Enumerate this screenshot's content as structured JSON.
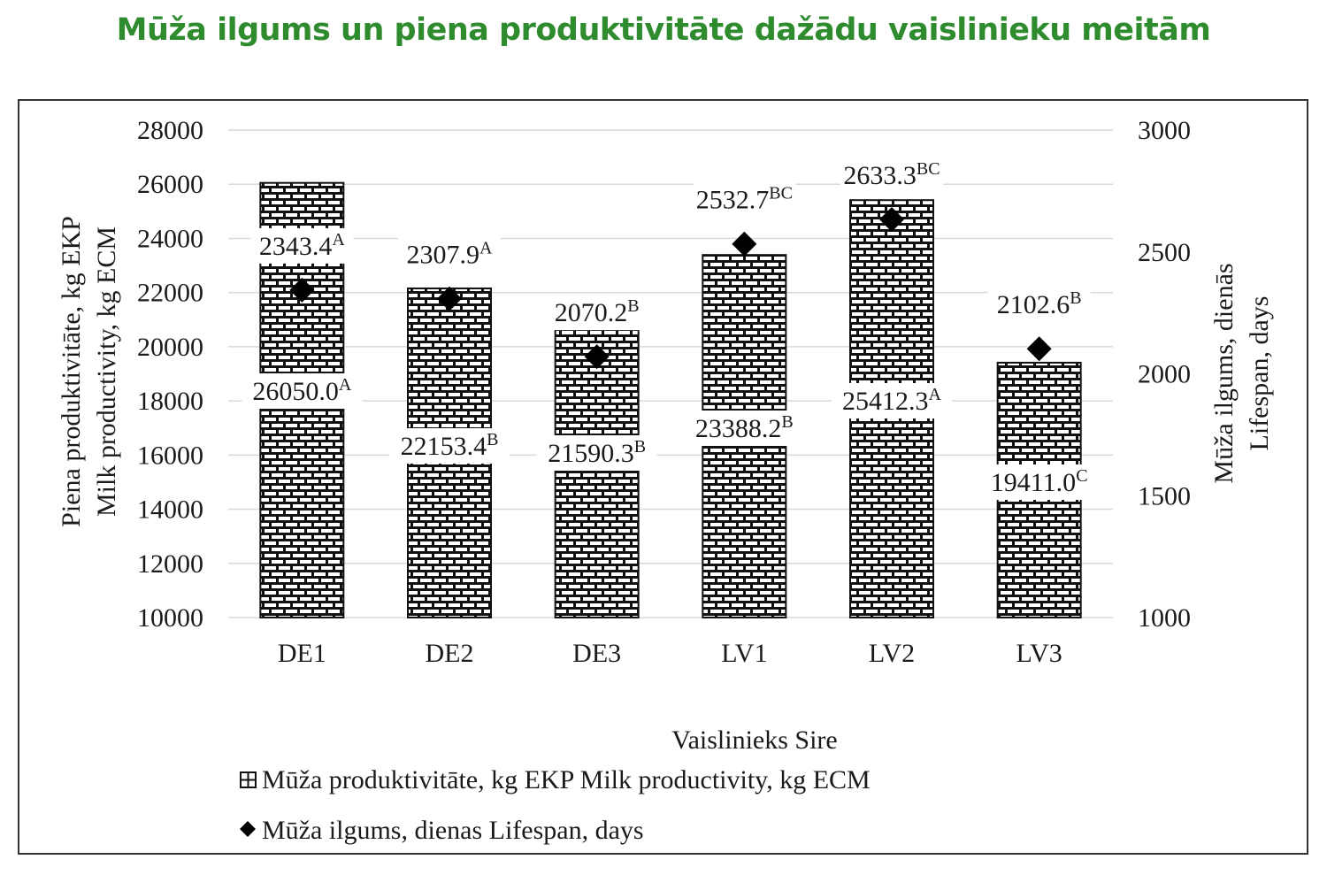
{
  "title": "Mūža ilgums un piena produktivitāte dažādu vaislinieku meitām",
  "chart_data": {
    "type": "bar",
    "categories": [
      "DE1",
      "DE2",
      "DE3",
      "LV1",
      "LV2",
      "LV3"
    ],
    "xlabel": "Vaislinieks Sire",
    "ylabel_left_line1": "Piena produktivitāte, kg EKP",
    "ylabel_left_line2": "Milk productivity, kg ECM",
    "ylabel_right_line1": "Mūža ilgums, dienās",
    "ylabel_right_line2": "Lifespan, days",
    "ylim_left": [
      10000,
      28000
    ],
    "ylim_right": [
      1000,
      3000
    ],
    "yticks_left": [
      "10000",
      "12000",
      "14000",
      "16000",
      "18000",
      "20000",
      "22000",
      "24000",
      "26000",
      "28000"
    ],
    "yticks_right": [
      "1000",
      "1500",
      "2000",
      "2500",
      "3000"
    ],
    "grid": true,
    "legend_position": "bottom",
    "series": [
      {
        "name": "Mūža produktivitāte, kg EKP Milk productivity, kg ECM",
        "type": "bar",
        "axis": "left",
        "values": [
          26050.0,
          22153.4,
          21590.3,
          23388.2,
          25412.3,
          19411.0
        ],
        "labels": [
          "26050.0",
          "22153.4",
          "21590.3",
          "23388.2",
          "25412.3",
          "19411.0"
        ],
        "superscripts": [
          "A",
          "B",
          "B",
          "B",
          "A",
          "C"
        ]
      },
      {
        "name": "Mūža ilgums, dienas Lifespan, days",
        "type": "scatter",
        "axis": "right",
        "values": [
          2343.4,
          2307.9,
          2070.2,
          2532.7,
          2633.3,
          2102.6
        ],
        "labels": [
          "2343.4",
          "2307.9",
          "2070.2",
          "2532.7",
          "2633.3",
          "2102.6"
        ],
        "superscripts": [
          "A",
          "A",
          "B",
          "BC",
          "BC",
          "B"
        ]
      }
    ]
  }
}
